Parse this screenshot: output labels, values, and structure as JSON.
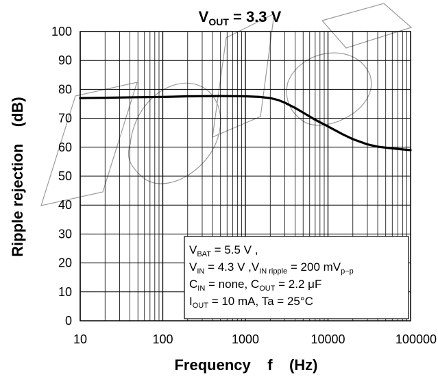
{
  "chart_data": {
    "type": "line",
    "title": {
      "main": "V",
      "sub": "OUT",
      "rest": " = 3.3 V"
    },
    "xlabel": "Frequency    f    (Hz)",
    "ylabel": "Ripple rejection    (dB)",
    "xscale": "log",
    "xlim": [
      10,
      100000
    ],
    "ylim": [
      0,
      100
    ],
    "x_ticks": [
      "10",
      "100",
      "1000",
      "10000",
      "100000"
    ],
    "y_ticks": [
      "0",
      "10",
      "20",
      "30",
      "40",
      "50",
      "60",
      "70",
      "80",
      "90",
      "100"
    ],
    "grid": true,
    "series": [
      {
        "x": [
          10,
          20,
          50,
          100,
          200,
          500,
          1000,
          1500,
          2000,
          2500,
          3000,
          4000,
          5000,
          7000,
          10000,
          15000,
          20000,
          30000,
          40000,
          60000,
          100000
        ],
        "y": [
          77,
          77.1,
          77.3,
          77.4,
          77.6,
          77.7,
          77.6,
          77.4,
          77,
          76.3,
          75.4,
          73.6,
          72,
          69.5,
          67.2,
          64.5,
          62.8,
          61,
          60.2,
          59.6,
          59
        ]
      }
    ],
    "annotations": [
      [
        {
          "t": "V"
        },
        {
          "t": "BAT",
          "sub": true
        },
        {
          "t": " = 5.5 V ,"
        }
      ],
      [
        {
          "t": "V"
        },
        {
          "t": "IN",
          "sub": true
        },
        {
          "t": " = 4.3 V ,V"
        },
        {
          "t": "IN ripple",
          "sub": true
        },
        {
          "t": " = 200 mV"
        },
        {
          "t": "p−p",
          "sub": true
        }
      ],
      [
        {
          "t": "C"
        },
        {
          "t": "IN",
          "sub": true
        },
        {
          "t": " = none, C"
        },
        {
          "t": "OUT",
          "sub": true
        },
        {
          "t": " = 2.2 μF"
        }
      ],
      [
        {
          "t": "I"
        },
        {
          "t": "OUT",
          "sub": true
        },
        {
          "t": " = 10 mA, Ta = 25°C"
        }
      ]
    ],
    "colors": {
      "line": "#000000",
      "grid": "#000000",
      "watermark": "#9a9a9a"
    }
  }
}
